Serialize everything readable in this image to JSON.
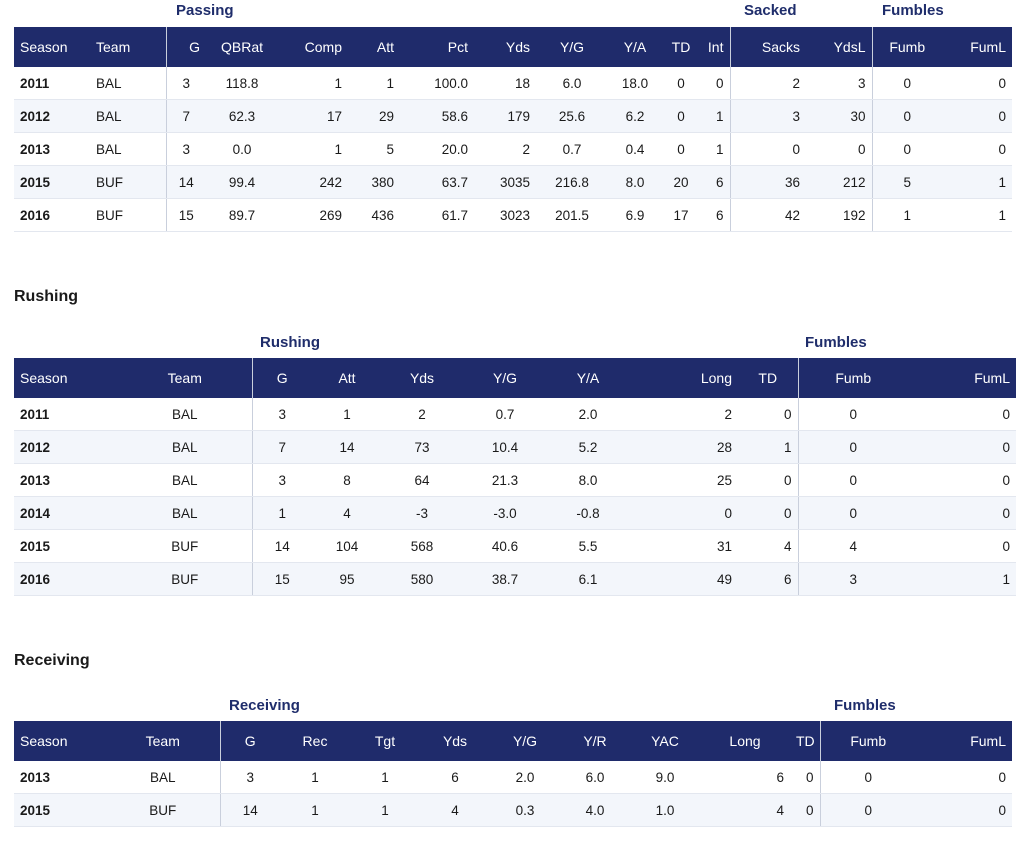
{
  "passing": {
    "groups": {
      "passing": "Passing",
      "sacked": "Sacked",
      "fumbles": "Fumbles"
    },
    "headers": [
      "Season",
      "Team",
      "G",
      "QBRat",
      "Comp",
      "Att",
      "Pct",
      "Yds",
      "Y/G",
      "Y/A",
      "TD",
      "Int",
      "Sacks",
      "YdsL",
      "Fumb",
      "FumL"
    ],
    "rows": [
      [
        "2011",
        "BAL",
        "3",
        "118.8",
        "1",
        "1",
        "100.0",
        "18",
        "6.0",
        "18.0",
        "0",
        "0",
        "2",
        "3",
        "0",
        "0"
      ],
      [
        "2012",
        "BAL",
        "7",
        "62.3",
        "17",
        "29",
        "58.6",
        "179",
        "25.6",
        "6.2",
        "0",
        "1",
        "3",
        "30",
        "0",
        "0"
      ],
      [
        "2013",
        "BAL",
        "3",
        "0.0",
        "1",
        "5",
        "20.0",
        "2",
        "0.7",
        "0.4",
        "0",
        "1",
        "0",
        "0",
        "0",
        "0"
      ],
      [
        "2015",
        "BUF",
        "14",
        "99.4",
        "242",
        "380",
        "63.7",
        "3035",
        "216.8",
        "8.0",
        "20",
        "6",
        "36",
        "212",
        "5",
        "1"
      ],
      [
        "2016",
        "BUF",
        "15",
        "89.7",
        "269",
        "436",
        "61.7",
        "3023",
        "201.5",
        "6.9",
        "17",
        "6",
        "42",
        "192",
        "1",
        "1"
      ]
    ]
  },
  "rushing": {
    "section_title": "Rushing",
    "groups": {
      "rushing": "Rushing",
      "fumbles": "Fumbles"
    },
    "headers": [
      "Season",
      "Team",
      "G",
      "Att",
      "Yds",
      "Y/G",
      "Y/A",
      "Long",
      "TD",
      "Fumb",
      "FumL"
    ],
    "rows": [
      [
        "2011",
        "BAL",
        "3",
        "1",
        "2",
        "0.7",
        "2.0",
        "2",
        "0",
        "0",
        "0"
      ],
      [
        "2012",
        "BAL",
        "7",
        "14",
        "73",
        "10.4",
        "5.2",
        "28",
        "1",
        "0",
        "0"
      ],
      [
        "2013",
        "BAL",
        "3",
        "8",
        "64",
        "21.3",
        "8.0",
        "25",
        "0",
        "0",
        "0"
      ],
      [
        "2014",
        "BAL",
        "1",
        "4",
        "-3",
        "-3.0",
        "-0.8",
        "0",
        "0",
        "0",
        "0"
      ],
      [
        "2015",
        "BUF",
        "14",
        "104",
        "568",
        "40.6",
        "5.5",
        "31",
        "4",
        "4",
        "0"
      ],
      [
        "2016",
        "BUF",
        "15",
        "95",
        "580",
        "38.7",
        "6.1",
        "49",
        "6",
        "3",
        "1"
      ]
    ]
  },
  "receiving": {
    "section_title": "Receiving",
    "groups": {
      "receiving": "Receiving",
      "fumbles": "Fumbles"
    },
    "headers": [
      "Season",
      "Team",
      "G",
      "Rec",
      "Tgt",
      "Yds",
      "Y/G",
      "Y/R",
      "YAC",
      "Long",
      "TD",
      "Fumb",
      "FumL"
    ],
    "rows": [
      [
        "2013",
        "BAL",
        "3",
        "1",
        "1",
        "6",
        "2.0",
        "6.0",
        "9.0",
        "6",
        "0",
        "0",
        "0"
      ],
      [
        "2015",
        "BUF",
        "14",
        "1",
        "1",
        "4",
        "0.3",
        "4.0",
        "1.0",
        "4",
        "0",
        "0",
        "0"
      ]
    ]
  }
}
